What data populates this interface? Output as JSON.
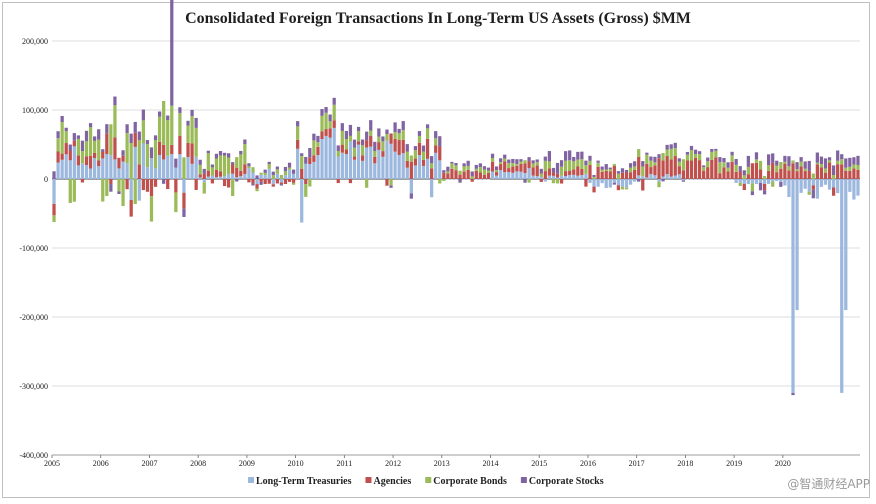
{
  "chart_data": {
    "type": "bar",
    "stacked": true,
    "title": "Consolidated Foreign Transactions In Long-Term US Assets (Gross) $MM",
    "xlabel": "",
    "ylabel": "",
    "ylim": [
      -400000,
      200000
    ],
    "yticks": [
      200000,
      100000,
      0,
      -100000,
      -200000,
      -300000,
      -400000
    ],
    "ytick_labels": [
      "200,000",
      "100,000",
      "0",
      "-100,000",
      "-200,000",
      "-300,000",
      "-400,000"
    ],
    "xtick_labels": [
      "2005",
      "2006",
      "2007",
      "2008",
      "2009",
      "2010",
      "2011",
      "2012",
      "2013",
      "2014",
      "2015",
      "2016",
      "2017",
      "2018",
      "2019",
      "2020"
    ],
    "grid": true,
    "legend_position": "bottom",
    "colors": {
      "treasuries": "#9db8de",
      "agencies": "#c0504d",
      "corp_bonds": "#9bbb59",
      "corp_stocks": "#8064a2"
    },
    "annual_series": [
      {
        "name": "Long-Term Treasuries",
        "key": "treasuries",
        "values": [
          30000,
          35000,
          25000,
          5000,
          10000,
          50000,
          55000,
          25000,
          0,
          10000,
          5000,
          -10000,
          5000,
          0,
          -5000,
          -20000
        ]
      },
      {
        "name": "Agencies",
        "key": "agencies",
        "values": [
          15000,
          20000,
          25000,
          10000,
          -5000,
          10000,
          10000,
          20000,
          10000,
          10000,
          10000,
          15000,
          20000,
          20000,
          15000,
          15000
        ]
      },
      {
        "name": "Corporate Bonds",
        "key": "corp_bonds",
        "values": [
          30000,
          35000,
          40000,
          20000,
          5000,
          15000,
          10000,
          10000,
          5000,
          5000,
          10000,
          5000,
          10000,
          10000,
          10000,
          5000
        ]
      },
      {
        "name": "Corporate Stocks",
        "key": "corp_stocks",
        "values": [
          10000,
          10000,
          10000,
          5000,
          5000,
          10000,
          10000,
          10000,
          5000,
          5000,
          10000,
          5000,
          5000,
          5000,
          10000,
          10000
        ]
      }
    ],
    "notable_points": [
      {
        "x": "2020-03",
        "series": "Long-Term Treasuries",
        "value": -310000
      },
      {
        "x": "2020-04",
        "series": "Long-Term Treasuries",
        "value": -190000
      },
      {
        "x": "2007-06",
        "series": "Corporate Stocks",
        "value": 170000
      }
    ]
  },
  "legend": [
    {
      "label": "Long-Term Treasuries",
      "key": "treasuries"
    },
    {
      "label": "Agencies",
      "key": "agencies"
    },
    {
      "label": "Corporate Bonds",
      "key": "corp_bonds"
    },
    {
      "label": "Corporate Stocks",
      "key": "corp_stocks"
    }
  ],
  "watermark": "@智通财经APP"
}
